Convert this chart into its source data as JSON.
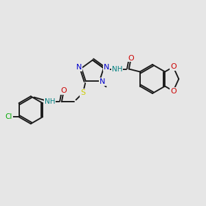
{
  "bg_color": "#e6e6e6",
  "bond_color": "#1a1a1a",
  "atom_colors": {
    "N": "#0000cc",
    "O": "#cc0000",
    "S": "#cccc00",
    "Cl": "#00aa00",
    "H": "#008080",
    "C": "#1a1a1a"
  },
  "figsize": [
    3.0,
    3.0
  ],
  "dpi": 100
}
